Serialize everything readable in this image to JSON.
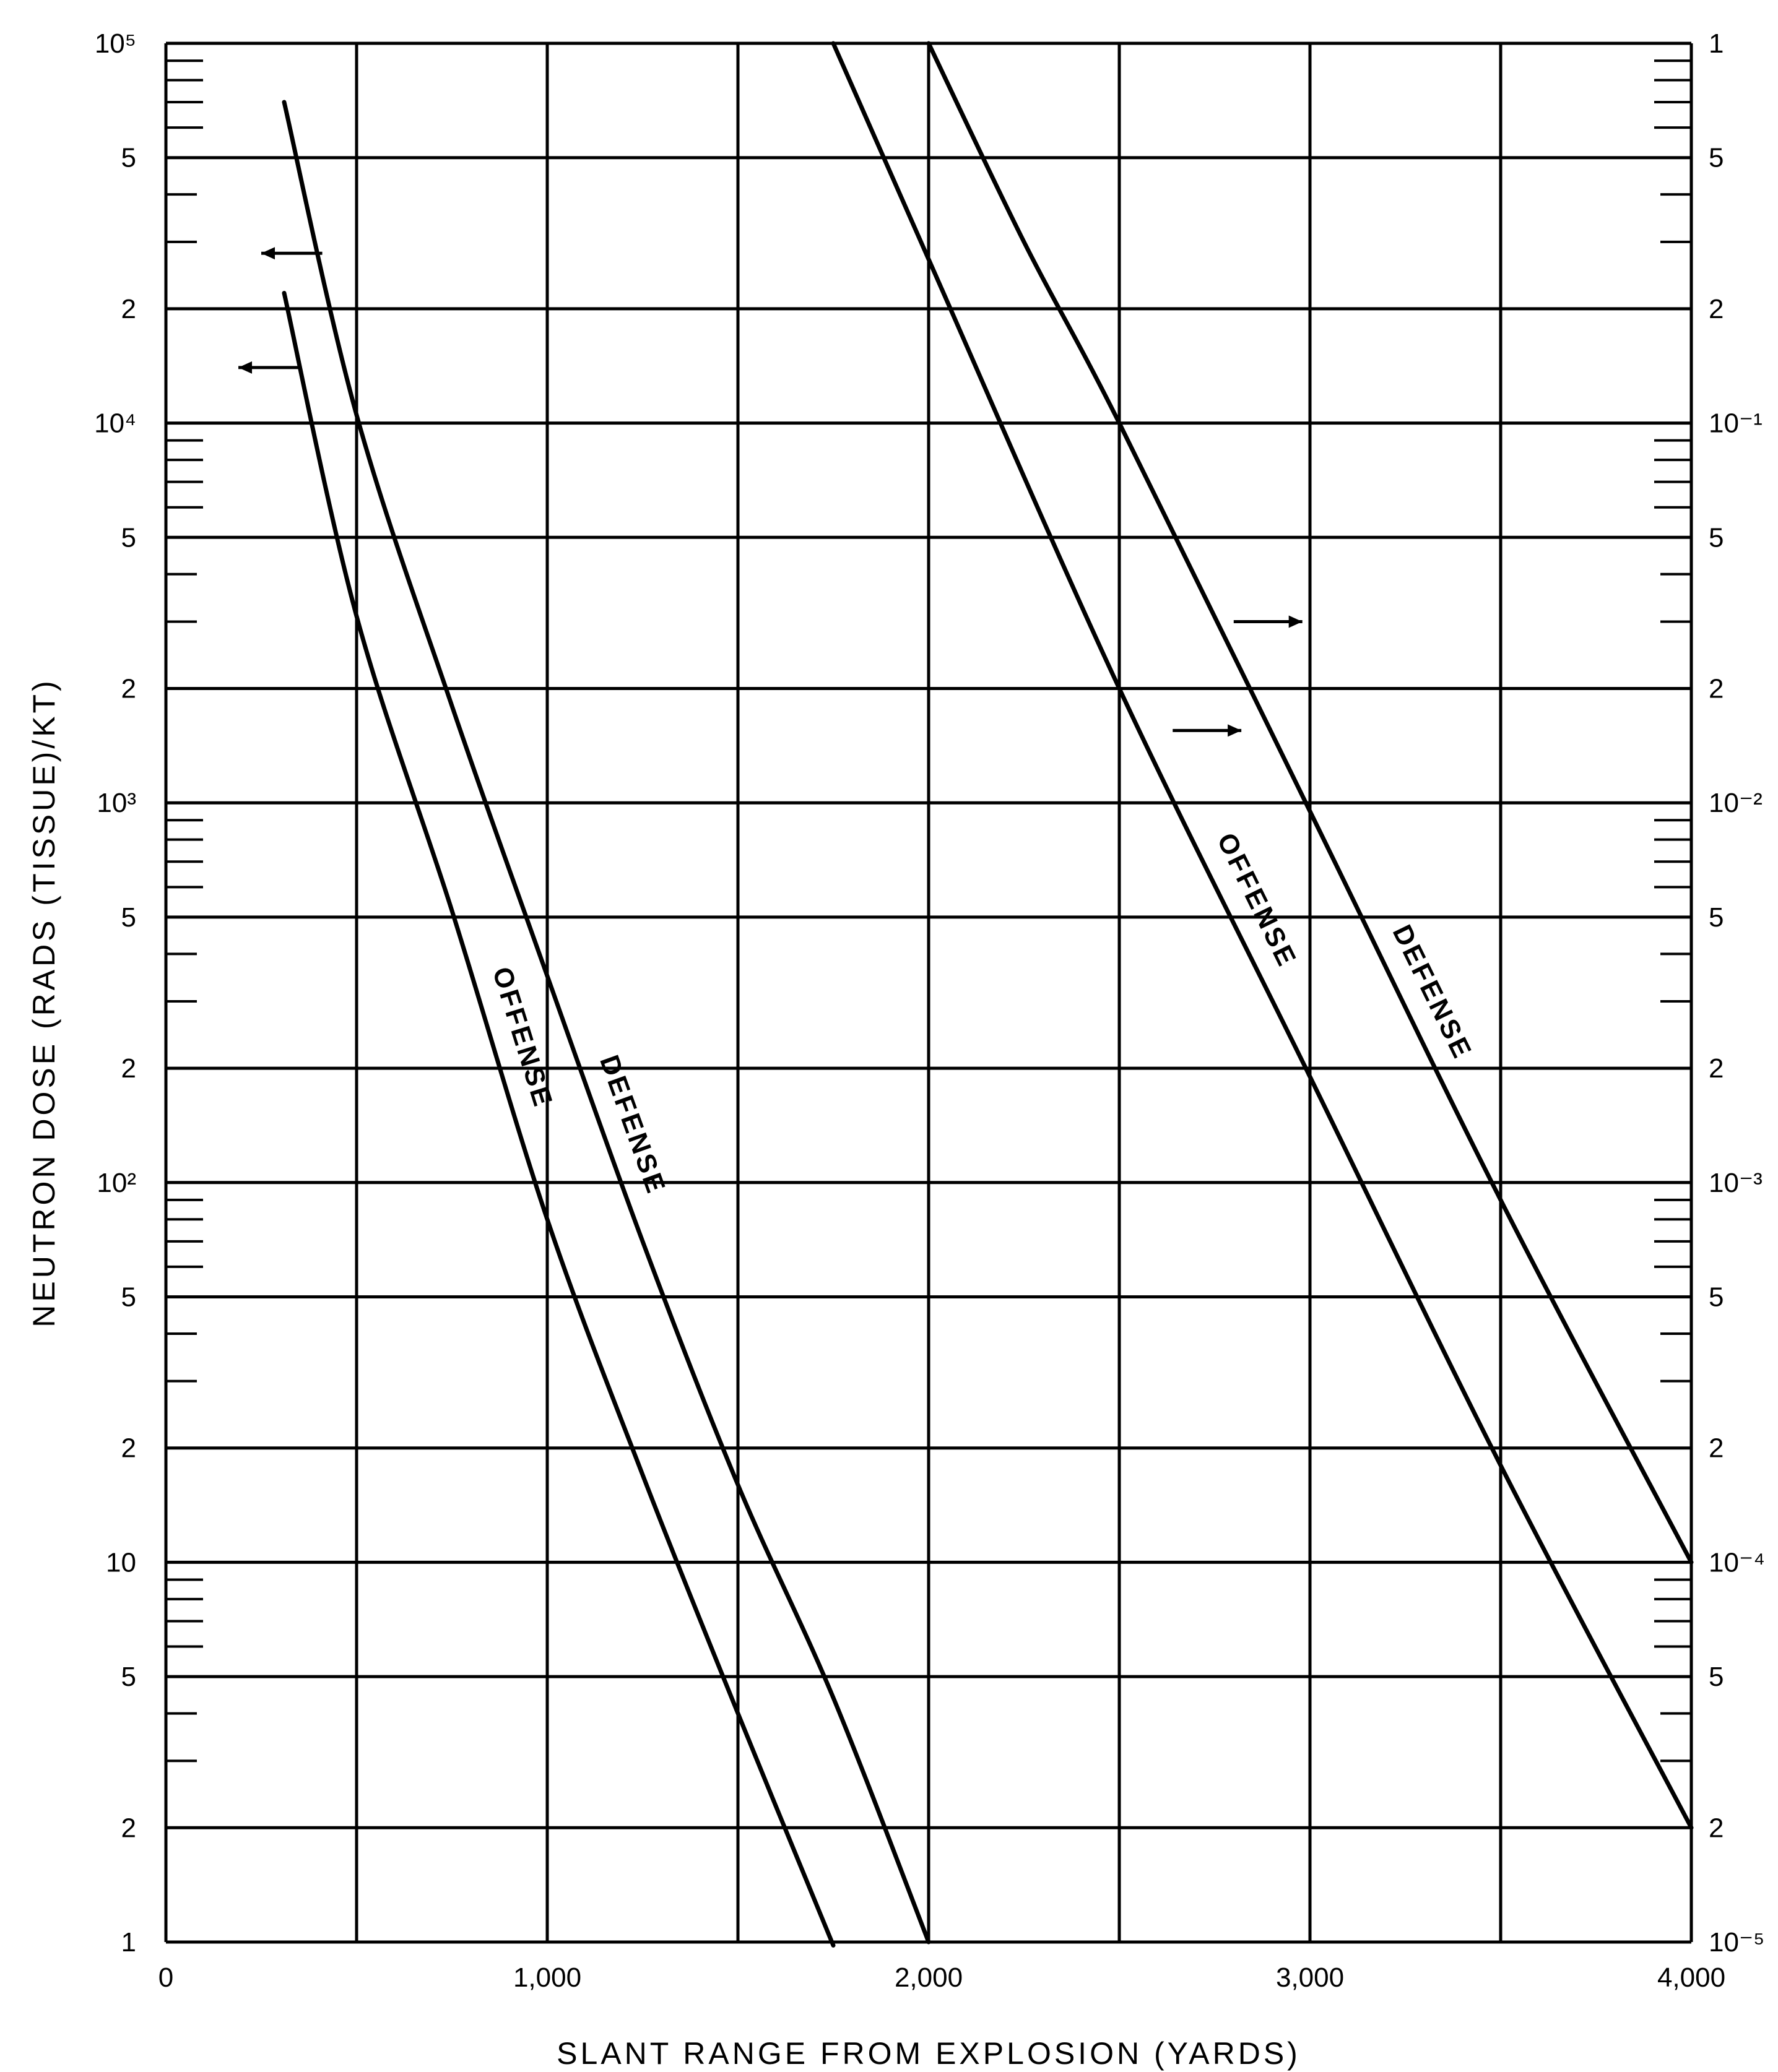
{
  "chart_data": {
    "type": "line",
    "xlabel": "SLANT RANGE FROM EXPLOSION (YARDS)",
    "ylabel": "NEUTRON DOSE (RADS (TISSUE)/KT)",
    "xlim": [
      0,
      4000
    ],
    "ylim": [
      1,
      100000
    ],
    "y_scale": "log",
    "y2lim": [
      1e-05,
      1
    ],
    "y2_scale": "log",
    "grid": true,
    "x_ticks": [
      "0",
      "1,000",
      "2,000",
      "3,000",
      "4,000"
    ],
    "y_ticks": [
      {
        "v": 1,
        "t": "1"
      },
      {
        "v": 2,
        "t": "2"
      },
      {
        "v": 5,
        "t": "5"
      },
      {
        "v": 10,
        "t": "10"
      },
      {
        "v": 20,
        "t": "2"
      },
      {
        "v": 50,
        "t": "5"
      },
      {
        "v": 100,
        "t": "10²"
      },
      {
        "v": 200,
        "t": "2"
      },
      {
        "v": 500,
        "t": "5"
      },
      {
        "v": 1000,
        "t": "10³"
      },
      {
        "v": 2000,
        "t": "2"
      },
      {
        "v": 5000,
        "t": "5"
      },
      {
        "v": 10000,
        "t": "10⁴"
      },
      {
        "v": 20000,
        "t": "2"
      },
      {
        "v": 50000,
        "t": "5"
      },
      {
        "v": 100000,
        "t": "10⁵"
      }
    ],
    "y2_ticks": [
      {
        "v": 1e-05,
        "t": "10⁻⁵"
      },
      {
        "v": 2e-05,
        "t": "2"
      },
      {
        "v": 5e-05,
        "t": "5"
      },
      {
        "v": 0.0001,
        "t": "10⁻⁴"
      },
      {
        "v": 0.0002,
        "t": "2"
      },
      {
        "v": 0.0005,
        "t": "5"
      },
      {
        "v": 0.001,
        "t": "10⁻³"
      },
      {
        "v": 0.002,
        "t": "2"
      },
      {
        "v": 0.005,
        "t": "5"
      },
      {
        "v": 0.01,
        "t": "10⁻²"
      },
      {
        "v": 0.02,
        "t": "2"
      },
      {
        "v": 0.05,
        "t": "5"
      },
      {
        "v": 0.1,
        "t": "10⁻¹"
      },
      {
        "v": 0.2,
        "t": "2"
      },
      {
        "v": 0.5,
        "t": "5"
      },
      {
        "v": 1,
        "t": "1"
      }
    ],
    "series": [
      {
        "name": "OFFENSE",
        "axis": "left",
        "x": [
          310,
          500,
          750,
          1000,
          1250,
          1500,
          1750
        ],
        "y": [
          22000,
          3100,
          520,
          80,
          17,
          4,
          0.98
        ]
      },
      {
        "name": "DEFENSE",
        "axis": "left",
        "x": [
          310,
          500,
          750,
          1000,
          1250,
          1500,
          1750,
          2000
        ],
        "y": [
          70000,
          10500,
          1800,
          350,
          70,
          16,
          4.4,
          1.0
        ]
      },
      {
        "name": "OFFENSE",
        "axis": "right",
        "x": [
          1750,
          2000,
          2500,
          3000,
          3500,
          4000
        ],
        "y": [
          1,
          0.27,
          0.02,
          0.0019,
          0.00018,
          2e-05
        ]
      },
      {
        "name": "DEFENSE",
        "axis": "right",
        "x": [
          2000,
          2250,
          2500,
          3000,
          3500,
          4000
        ],
        "y": [
          1,
          0.3,
          0.1,
          0.0095,
          0.0009,
          0.0001
        ]
      }
    ],
    "annotations": [
      {
        "text": "OFFENSE",
        "series": 0
      },
      {
        "text": "DEFENSE",
        "series": 1
      },
      {
        "text": "OFFENSE",
        "series": 2
      },
      {
        "text": "DEFENSE",
        "series": 3
      }
    ]
  }
}
